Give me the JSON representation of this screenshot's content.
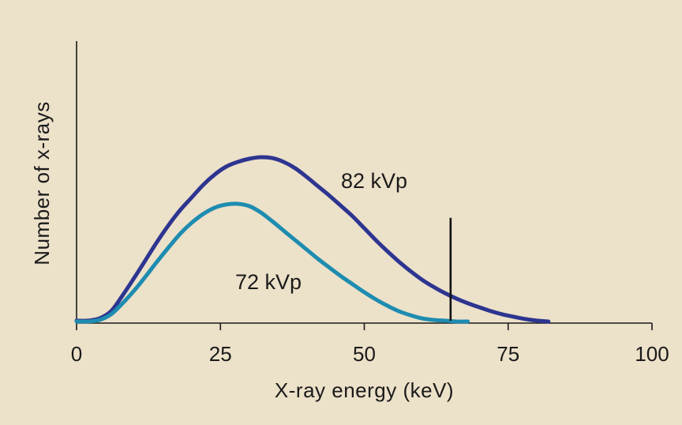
{
  "chart_data": {
    "type": "line",
    "title": "",
    "xlabel": "X-ray energy (keV)",
    "ylabel": "Number of x-rays",
    "xlim": [
      0,
      100
    ],
    "ylim": [
      0,
      1
    ],
    "xticks": [
      "0",
      "25",
      "50",
      "75",
      "100"
    ],
    "grid": false,
    "legend": "none",
    "series": [
      {
        "name": "82 kVp",
        "color": "#2d3590",
        "x": [
          0,
          2,
          4,
          6,
          8,
          10,
          12,
          14,
          16,
          18,
          20,
          22,
          24,
          26,
          28,
          30,
          32,
          34,
          36,
          38,
          40,
          42,
          44,
          46,
          48,
          50,
          52,
          54,
          56,
          58,
          60,
          62,
          64,
          66,
          68,
          70,
          72,
          74,
          76,
          78,
          80,
          82
        ],
        "y": [
          0.014,
          0.014,
          0.027,
          0.068,
          0.158,
          0.257,
          0.36,
          0.464,
          0.559,
          0.644,
          0.716,
          0.788,
          0.847,
          0.892,
          0.919,
          0.937,
          0.946,
          0.941,
          0.919,
          0.883,
          0.833,
          0.779,
          0.725,
          0.667,
          0.608,
          0.541,
          0.473,
          0.41,
          0.351,
          0.297,
          0.248,
          0.207,
          0.171,
          0.14,
          0.113,
          0.09,
          0.068,
          0.05,
          0.036,
          0.023,
          0.014,
          0.009
        ]
      },
      {
        "name": "72 kVp",
        "color": "#1e8cb0",
        "x": [
          0,
          2,
          4,
          6,
          8,
          10,
          12,
          14,
          16,
          18,
          20,
          22,
          24,
          26,
          28,
          30,
          32,
          34,
          36,
          38,
          40,
          42,
          44,
          46,
          48,
          50,
          52,
          54,
          56,
          58,
          60,
          62,
          64,
          66,
          68
        ],
        "y": [
          0.009,
          0.009,
          0.018,
          0.05,
          0.113,
          0.185,
          0.266,
          0.351,
          0.432,
          0.509,
          0.572,
          0.622,
          0.658,
          0.676,
          0.68,
          0.667,
          0.631,
          0.581,
          0.527,
          0.473,
          0.419,
          0.365,
          0.315,
          0.266,
          0.221,
          0.176,
          0.135,
          0.099,
          0.068,
          0.045,
          0.027,
          0.018,
          0.014,
          0.009,
          0.009
        ]
      }
    ],
    "annotations": [
      {
        "type": "vertical-line",
        "x": 65,
        "y_from": 0,
        "y_to": 0.6
      }
    ]
  }
}
